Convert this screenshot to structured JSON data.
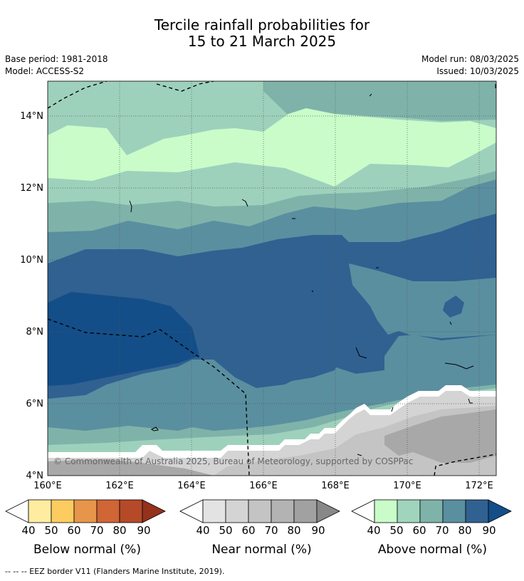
{
  "title_line1": "Tercile rainfall probabilities for",
  "title_line2": "15 to 21 March 2025",
  "base_period": "Base period: 1981-2018",
  "model": "Model: ACCESS-S2",
  "model_run": "Model run: 08/03/2025",
  "issued": "Issued: 10/03/2025",
  "latitude_labels": [
    "14°N",
    "12°N",
    "10°N",
    "8°N",
    "6°N",
    "4°N"
  ],
  "longitude_labels": [
    "160°E",
    "162°E",
    "164°E",
    "166°E",
    "168°E",
    "170°E",
    "172°E"
  ],
  "copyright": "© Commonwealth of Australia 2025, Bureau of Meteorology, supported by COSPPac",
  "colorbars": [
    {
      "title": "Below normal (%)",
      "ticks": [
        "40",
        "50",
        "60",
        "70",
        "80",
        "90"
      ],
      "colors": [
        "#ffffff",
        "#feeda0",
        "#fdcc60",
        "#e6954a",
        "#d06535",
        "#b44a28",
        "#94321c"
      ]
    },
    {
      "title": "Near normal (%)",
      "ticks": [
        "40",
        "50",
        "60",
        "70",
        "80",
        "90"
      ],
      "colors": [
        "#ffffff",
        "#e3e3e3",
        "#d4d4d4",
        "#c4c4c4",
        "#b3b3b3",
        "#a1a1a1",
        "#888888"
      ]
    },
    {
      "title": "Above normal (%)",
      "ticks": [
        "40",
        "50",
        "60",
        "70",
        "80",
        "90"
      ],
      "colors": [
        "#ffffff",
        "#c9fcc9",
        "#a1d4bd",
        "#7fb3aa",
        "#5a8fa0",
        "#306191",
        "#134e88"
      ]
    }
  ],
  "footer": "-- -- -- EEZ border V11 (Flanders Marine Institute, 2019)."
}
